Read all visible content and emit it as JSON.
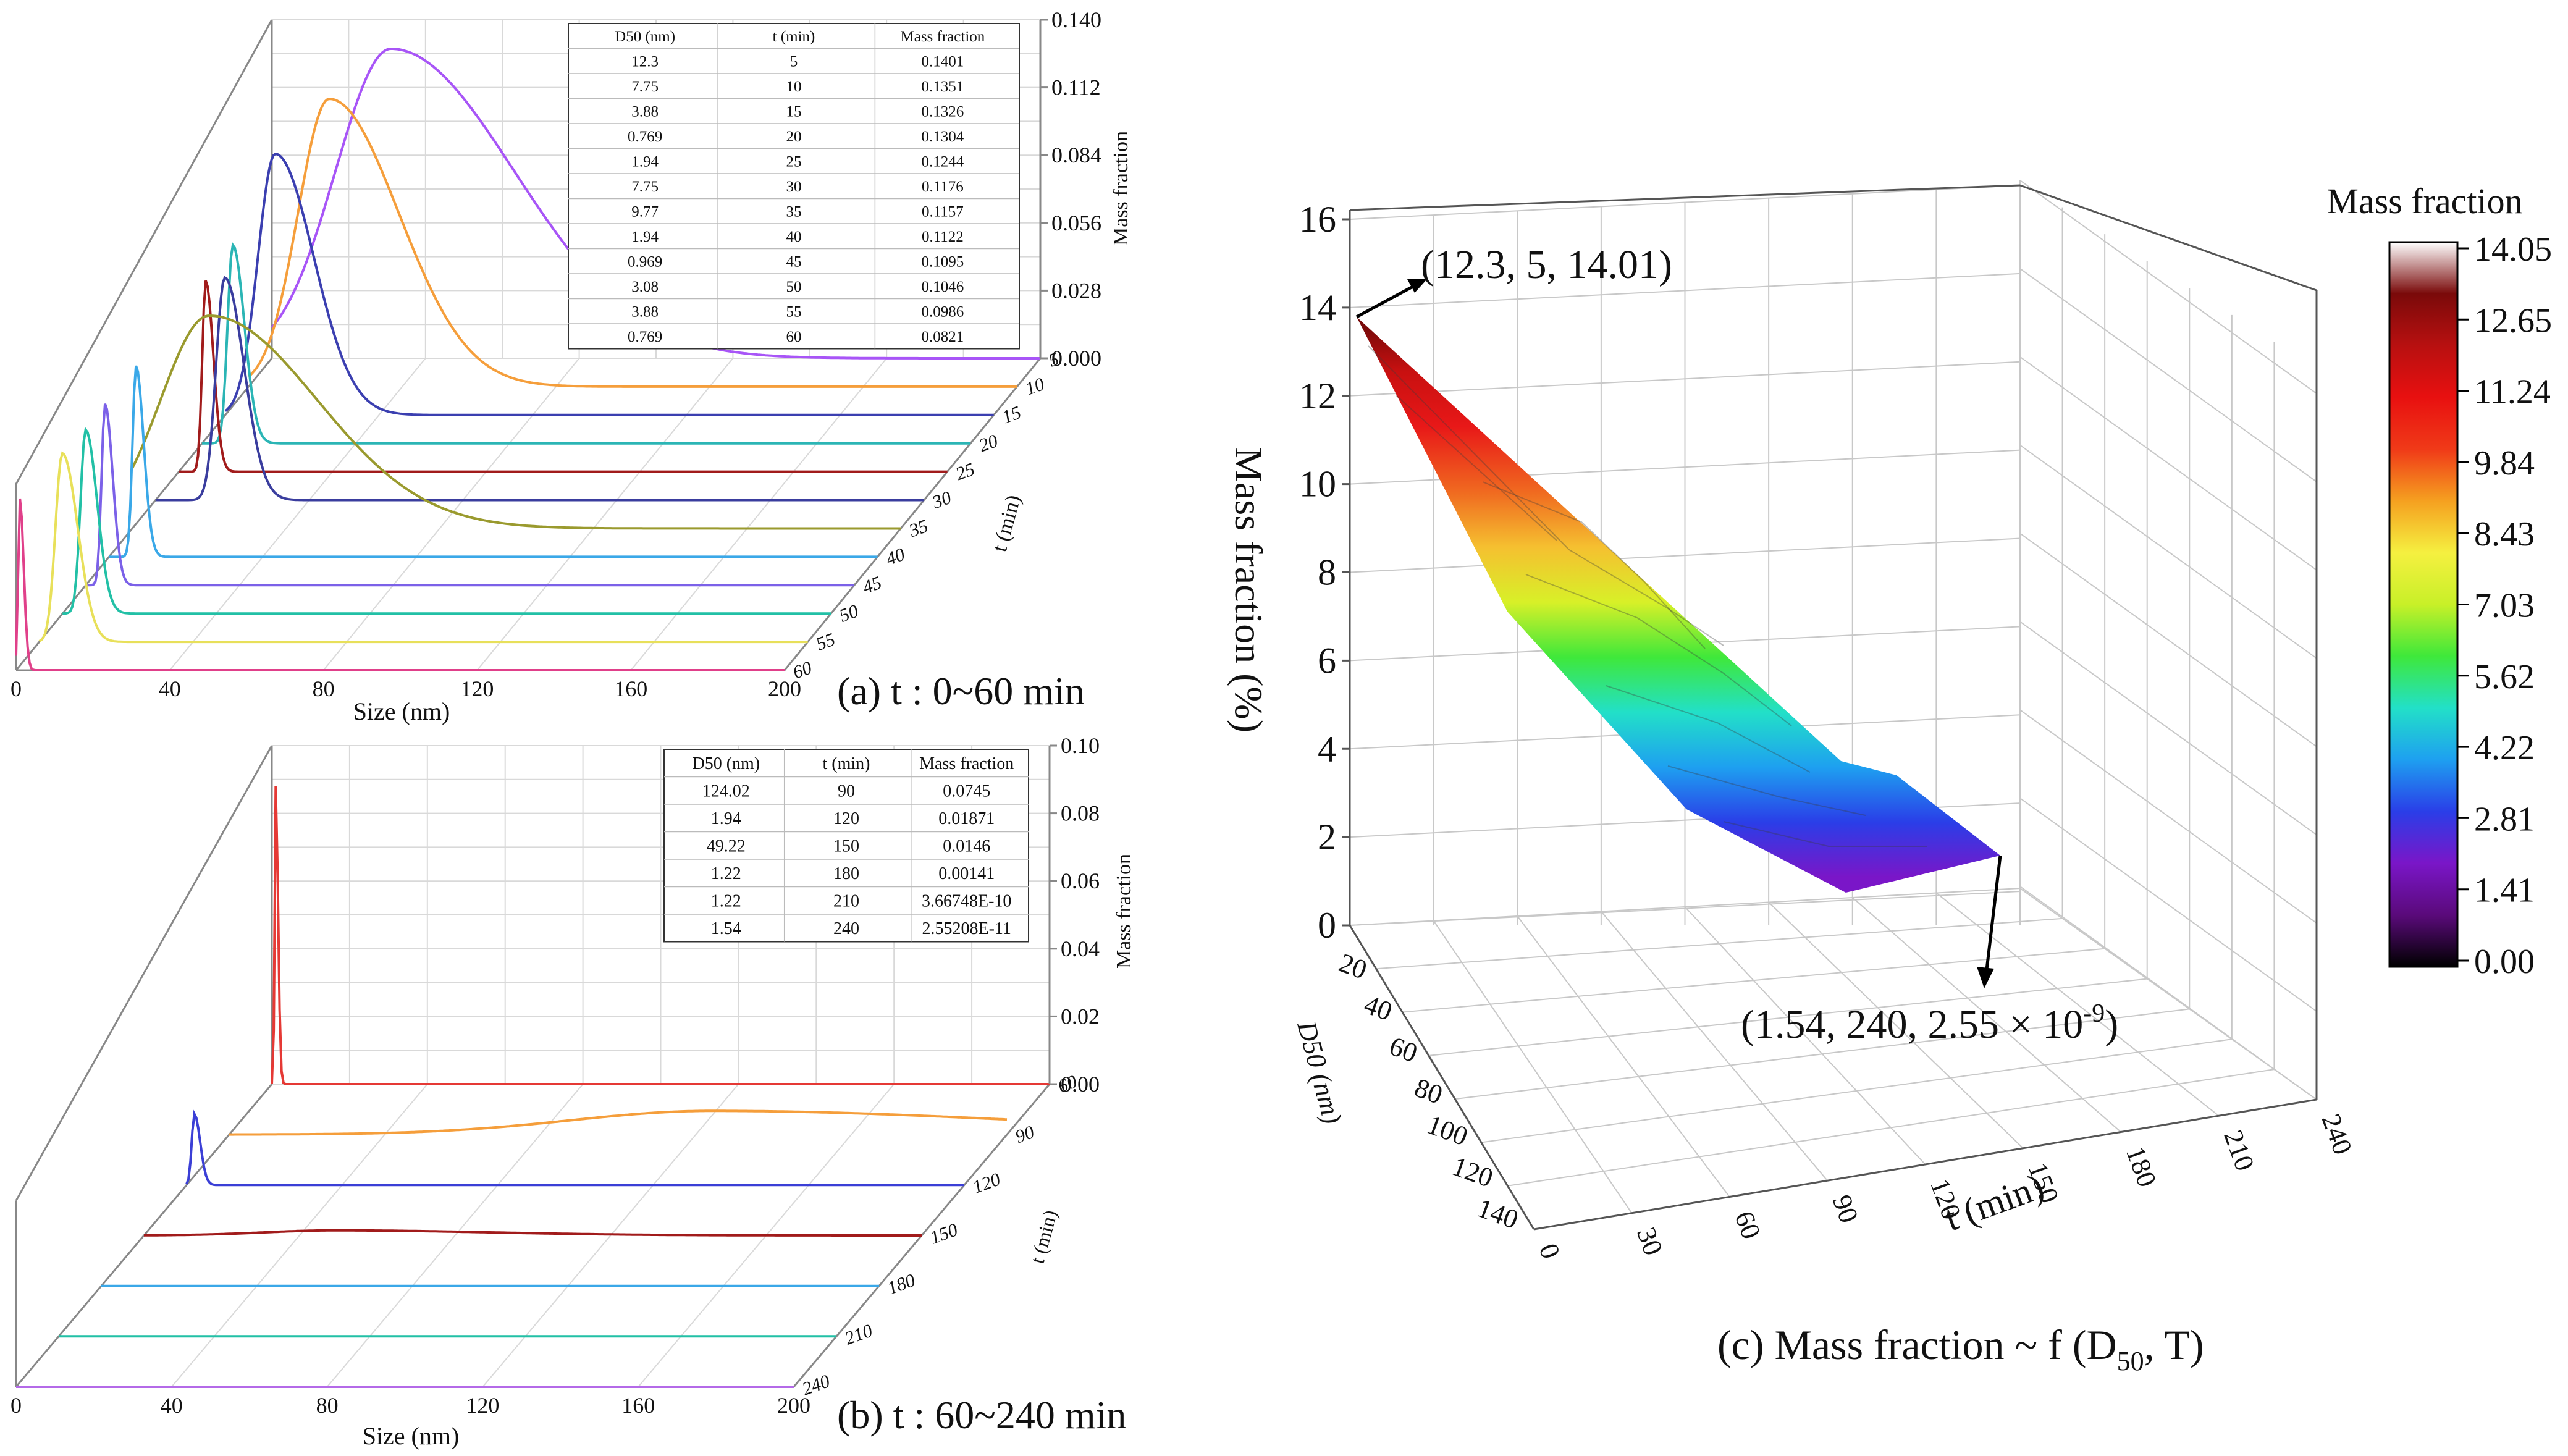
{
  "chart_data": [
    {
      "panel": "a",
      "type": "line",
      "caption": "(a)  t : 0~60 min",
      "xlabel": "Size (nm)",
      "x_ticks": [
        "0",
        "40",
        "80",
        "120",
        "160",
        "200"
      ],
      "xlim": [
        0,
        200
      ],
      "t_label": "t (min)",
      "t_ticks": [
        "5",
        "10",
        "15",
        "20",
        "25",
        "30",
        "35",
        "40",
        "45",
        "50",
        "55",
        "60"
      ],
      "zlabel": "Mass fraction",
      "z_ticks": [
        "0.140",
        "0.112",
        "0.084",
        "0.056",
        "0.028",
        "0.000"
      ],
      "zlim": [
        0,
        0.14
      ],
      "table_headers": [
        "D50 (nm)",
        "t (min)",
        "Mass fraction"
      ],
      "table_rows": [
        [
          "12.3",
          "5",
          "0.1401"
        ],
        [
          "7.75",
          "10",
          "0.1351"
        ],
        [
          "3.88",
          "15",
          "0.1326"
        ],
        [
          "0.769",
          "20",
          "0.1304"
        ],
        [
          "1.94",
          "25",
          "0.1244"
        ],
        [
          "7.75",
          "30",
          "0.1176"
        ],
        [
          "9.77",
          "35",
          "0.1157"
        ],
        [
          "1.94",
          "40",
          "0.1122"
        ],
        [
          "0.969",
          "45",
          "0.1095"
        ],
        [
          "3.08",
          "50",
          "0.1046"
        ],
        [
          "3.88",
          "55",
          "0.0986"
        ],
        [
          "0.769",
          "60",
          "0.0821"
        ]
      ],
      "series": [
        {
          "t": 5,
          "color": "#a855f7",
          "peak_size": 31,
          "peak": 0.128,
          "width": 32
        },
        {
          "t": 10,
          "color": "#f59e3b",
          "peak_size": 21,
          "peak": 0.119,
          "width": 18
        },
        {
          "t": 15,
          "color": "#3b3fb0",
          "peak_size": 13,
          "peak": 0.108,
          "width": 10
        },
        {
          "t": 20,
          "color": "#2bb5b5",
          "peak_size": 8,
          "peak": 0.082,
          "width": 3
        },
        {
          "t": 25,
          "color": "#a11b1b",
          "peak_size": 7,
          "peak": 0.079,
          "width": 2
        },
        {
          "t": 30,
          "color": "#3a3d9e",
          "peak_size": 18,
          "peak": 0.092,
          "width": 5
        },
        {
          "t": 35,
          "color": "#9a9a2e",
          "peak_size": 20,
          "peak": 0.088,
          "width": 28
        },
        {
          "t": 40,
          "color": "#3aa8e8",
          "peak_size": 7,
          "peak": 0.079,
          "width": 2
        },
        {
          "t": 45,
          "color": "#7b61e8",
          "peak_size": 5,
          "peak": 0.075,
          "width": 2
        },
        {
          "t": 50,
          "color": "#22c0a6",
          "peak_size": 6,
          "peak": 0.076,
          "width": 3
        },
        {
          "t": 55,
          "color": "#e8e05a",
          "peak_size": 6,
          "peak": 0.078,
          "width": 4
        },
        {
          "t": 60,
          "color": "#e0408a",
          "peak_size": 1,
          "peak": 0.071,
          "width": 1
        }
      ]
    },
    {
      "panel": "b",
      "type": "line",
      "caption": "(b)    t : 60~240 min",
      "xlabel": "Size (nm)",
      "x_ticks": [
        "0",
        "40",
        "80",
        "120",
        "160",
        "200"
      ],
      "xlim": [
        0,
        200
      ],
      "t_label": "t (min)",
      "t_ticks": [
        "60",
        "90",
        "120",
        "150",
        "180",
        "210",
        "240"
      ],
      "zlabel": "Mass fraction",
      "z_ticks": [
        "0.10",
        "0.08",
        "0.06",
        "0.04",
        "0.02",
        "0.00"
      ],
      "zlim": [
        0,
        0.1
      ],
      "table_headers": [
        "D50 (nm)",
        "t (min)",
        "Mass fraction"
      ],
      "table_rows": [
        [
          "124.02",
          "90",
          "0.0745"
        ],
        [
          "1.94",
          "120",
          "0.01871"
        ],
        [
          "49.22",
          "150",
          "0.0146"
        ],
        [
          "1.22",
          "180",
          "0.00141"
        ],
        [
          "1.22",
          "210",
          "3.66748E-10"
        ],
        [
          "1.54",
          "240",
          "2.55208E-11"
        ]
      ],
      "series": [
        {
          "t": 60,
          "color": "#e53935",
          "peak_size": 1,
          "peak": 0.088,
          "width": 0.6
        },
        {
          "t": 90,
          "color": "#f59e3b",
          "peak_size": 124,
          "peak": 0.007,
          "width": 80
        },
        {
          "t": 120,
          "color": "#3b3fd6",
          "peak_size": 2,
          "peak": 0.021,
          "width": 1.5
        },
        {
          "t": 150,
          "color": "#a11b1b",
          "peak_size": 49,
          "peak": 0.0015,
          "width": 40
        },
        {
          "t": 180,
          "color": "#3aa8e8",
          "peak_size": 1,
          "peak": 0,
          "width": 1
        },
        {
          "t": 210,
          "color": "#22c0a6",
          "peak_size": 1,
          "peak": 0,
          "width": 1
        },
        {
          "t": 240,
          "color": "#b46ae8",
          "peak_size": 1,
          "peak": 0,
          "width": 1
        }
      ]
    },
    {
      "panel": "c",
      "type": "surface",
      "caption_main": "(c)  Mass fraction ~ f (D",
      "caption_sub": "50",
      "caption_end": ", T)",
      "zlabel": "Mass fraction (%)",
      "z_ticks": [
        "0",
        "2",
        "4",
        "6",
        "8",
        "10",
        "12",
        "14",
        "16"
      ],
      "zlim": [
        0,
        16
      ],
      "d50_label": "D50 (nm)",
      "d50_ticks": [
        "20",
        "40",
        "60",
        "80",
        "100",
        "120",
        "140"
      ],
      "t_label": "t (min)",
      "t_ticks": [
        "0",
        "30",
        "60",
        "90",
        "120",
        "150",
        "180",
        "210",
        "240"
      ],
      "annotation_top": "(12.3, 5, 14.01)",
      "annotation_bottom_main": "(1.54, 240, 2.55 × 10",
      "annotation_bottom_sup": "-9",
      "annotation_bottom_end": ")",
      "surface_points": [
        {
          "d50": 12.3,
          "t": 5,
          "z": 14.01
        },
        {
          "d50": 1.94,
          "t": 120,
          "z": 1.87
        },
        {
          "d50": 124.02,
          "t": 90,
          "z": 7.45
        },
        {
          "d50": 1.54,
          "t": 240,
          "z": 0
        }
      ],
      "colorbar_title": "Mass fraction",
      "colorbar_ticks": [
        "14.05",
        "12.65",
        "11.24",
        "9.84",
        "8.43",
        "7.03",
        "5.62",
        "4.22",
        "2.81",
        "1.41",
        "0.00"
      ],
      "colorbar_stops": [
        "#000000",
        "#5a0a7a",
        "#7a16c8",
        "#2a3ee8",
        "#1ea0f0",
        "#22e0c8",
        "#3fe83a",
        "#c8f028",
        "#f5f040",
        "#f5a020",
        "#f03a18",
        "#e81010",
        "#b81010",
        "#7a0a0a",
        "#ffffff"
      ]
    }
  ]
}
